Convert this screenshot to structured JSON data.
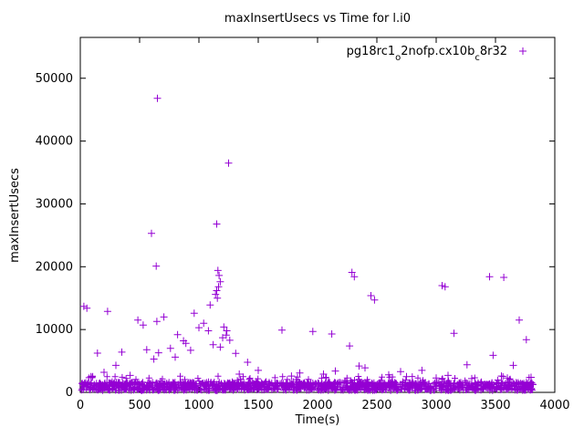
{
  "chart_data": {
    "type": "scatter",
    "title": "maxInsertUsecs vs Time for l.i0",
    "xlabel": "Time(s)",
    "ylabel": "maxInsertUsecs",
    "xlim": [
      0,
      4000
    ],
    "ylim": [
      0,
      56500
    ],
    "xticks": [
      0,
      500,
      1000,
      1500,
      2000,
      2500,
      3000,
      3500,
      4000
    ],
    "yticks": [
      0,
      10000,
      20000,
      30000,
      40000,
      50000
    ],
    "grid": false,
    "marker": "plus",
    "marker_color": "#9400d3",
    "axis_color": "#000000",
    "legend": {
      "position": "top-right-inside",
      "label_segments": [
        {
          "text": "pg18rc1",
          "sub": false
        },
        {
          "text": "o",
          "sub": true
        },
        {
          "text": "2nofp.cx10b",
          "sub": false
        },
        {
          "text": "c",
          "sub": true
        },
        {
          "text": "8r32",
          "sub": false
        }
      ]
    },
    "series": [
      {
        "name": "pg18rc1_o2nofp.cx10b_c8r32",
        "outlier_points": [
          [
            30,
            13700
          ],
          [
            55,
            13400
          ],
          [
            90,
            2500
          ],
          [
            145,
            6250
          ],
          [
            200,
            3200
          ],
          [
            230,
            12900
          ],
          [
            300,
            4300
          ],
          [
            350,
            6400
          ],
          [
            420,
            2700
          ],
          [
            485,
            11500
          ],
          [
            530,
            10700
          ],
          [
            560,
            6800
          ],
          [
            600,
            25300
          ],
          [
            620,
            5300
          ],
          [
            640,
            20100
          ],
          [
            645,
            11300
          ],
          [
            650,
            46800
          ],
          [
            660,
            6300
          ],
          [
            705,
            12000
          ],
          [
            760,
            7000
          ],
          [
            800,
            5600
          ],
          [
            820,
            9200
          ],
          [
            870,
            8200
          ],
          [
            890,
            7800
          ],
          [
            930,
            6700
          ],
          [
            960,
            12600
          ],
          [
            1000,
            10300
          ],
          [
            1040,
            11000
          ],
          [
            1080,
            9800
          ],
          [
            1095,
            13900
          ],
          [
            1120,
            7600
          ],
          [
            1140,
            15600
          ],
          [
            1150,
            16200
          ],
          [
            1150,
            26800
          ],
          [
            1155,
            15000
          ],
          [
            1160,
            19400
          ],
          [
            1165,
            16800
          ],
          [
            1170,
            18600
          ],
          [
            1180,
            17600
          ],
          [
            1180,
            7200
          ],
          [
            1200,
            8700
          ],
          [
            1210,
            10400
          ],
          [
            1230,
            9100
          ],
          [
            1235,
            9800
          ],
          [
            1250,
            36500
          ],
          [
            1260,
            8300
          ],
          [
            1310,
            6200
          ],
          [
            1340,
            2900
          ],
          [
            1410,
            4800
          ],
          [
            1500,
            3500
          ],
          [
            1700,
            9900
          ],
          [
            1780,
            2600
          ],
          [
            1850,
            3100
          ],
          [
            1960,
            9700
          ],
          [
            2050,
            2900
          ],
          [
            2120,
            9300
          ],
          [
            2150,
            3400
          ],
          [
            2270,
            7400
          ],
          [
            2290,
            19100
          ],
          [
            2310,
            18400
          ],
          [
            2350,
            4200
          ],
          [
            2400,
            3900
          ],
          [
            2450,
            15400
          ],
          [
            2480,
            14700
          ],
          [
            2600,
            2800
          ],
          [
            2700,
            3300
          ],
          [
            2750,
            2500
          ],
          [
            2880,
            3500
          ],
          [
            3000,
            2300
          ],
          [
            3050,
            17000
          ],
          [
            3075,
            16800
          ],
          [
            3100,
            2700
          ],
          [
            3150,
            9400
          ],
          [
            3260,
            4400
          ],
          [
            3300,
            2200
          ],
          [
            3450,
            18400
          ],
          [
            3480,
            5900
          ],
          [
            3550,
            2600
          ],
          [
            3570,
            18300
          ],
          [
            3600,
            2300
          ],
          [
            3650,
            4300
          ],
          [
            3700,
            11500
          ],
          [
            3760,
            8400
          ],
          [
            3800,
            2400
          ]
        ],
        "baseline_band": {
          "x_min": 5,
          "x_max": 3820,
          "y_min": 250,
          "y_max": 1650,
          "count": 1500
        },
        "upper_fringe": {
          "x_min": 5,
          "x_max": 3820,
          "y_min": 1650,
          "y_max": 2600,
          "count": 70
        }
      }
    ]
  }
}
